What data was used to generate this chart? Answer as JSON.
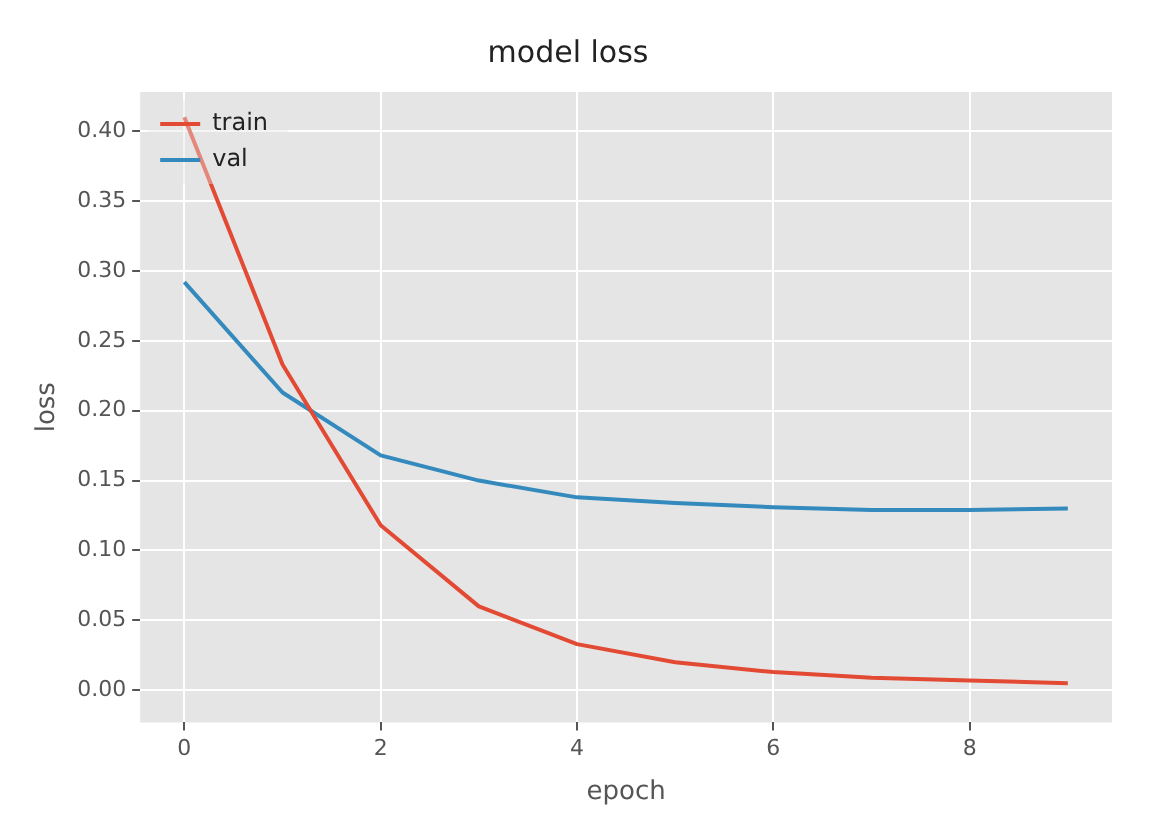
{
  "chart_data": {
    "type": "line",
    "title": "model loss",
    "xlabel": "epoch",
    "ylabel": "loss",
    "x": [
      0,
      1,
      2,
      3,
      4,
      5,
      6,
      7,
      8,
      9
    ],
    "series": [
      {
        "name": "train",
        "color": "#e24a33",
        "values": [
          0.41,
          0.233,
          0.118,
          0.06,
          0.033,
          0.02,
          0.013,
          0.009,
          0.007,
          0.005
        ]
      },
      {
        "name": "val",
        "color": "#348abd",
        "values": [
          0.292,
          0.213,
          0.168,
          0.15,
          0.138,
          0.134,
          0.131,
          0.129,
          0.129,
          0.13
        ]
      }
    ],
    "xlim": [
      -0.45,
      9.45
    ],
    "xticks": [
      0,
      2,
      4,
      6,
      8
    ],
    "ylim": [
      -0.023,
      0.428
    ],
    "yticks": [
      {
        "value": 0,
        "label": "0.00"
      },
      {
        "value": 0.05,
        "label": "0.05"
      },
      {
        "value": 0.1,
        "label": "0.10"
      },
      {
        "value": 0.15,
        "label": "0.15"
      },
      {
        "value": 0.2,
        "label": "0.20"
      },
      {
        "value": 0.25,
        "label": "0.25"
      },
      {
        "value": 0.3,
        "label": "0.30"
      },
      {
        "value": 0.35,
        "label": "0.35"
      },
      {
        "value": 0.4,
        "label": "0.40"
      }
    ],
    "grid": true,
    "legend": "top left",
    "marker": "none",
    "line_style": "solid"
  }
}
